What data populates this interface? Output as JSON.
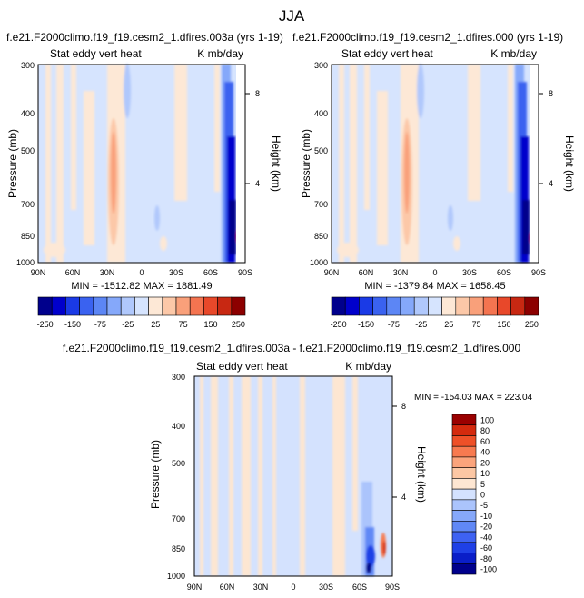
{
  "page_title": "JJA",
  "palette": {
    "full": [
      "#00008c",
      "#0000cc",
      "#1a3ae6",
      "#3a62f0",
      "#5c86f5",
      "#85a8fa",
      "#b0c8fc",
      "#d6e4fe",
      "#fde8d6",
      "#fcc8a8",
      "#f9a07a",
      "#f47450",
      "#e8482a",
      "#c82812",
      "#8c0000"
    ],
    "full_labels": [
      "-250",
      "-150",
      "-75",
      "-25",
      "25",
      "75",
      "150",
      "250"
    ],
    "diff": [
      "#00008c",
      "#0a1ec8",
      "#1f40e6",
      "#3e62f2",
      "#6088f6",
      "#86a8fa",
      "#abc4fc",
      "#d4e2fe",
      "#fde6d2",
      "#fcc7a4",
      "#fba47c",
      "#f77a50",
      "#ee5028",
      "#d42a0e",
      "#9a0000"
    ],
    "diff_labels": [
      "100",
      "80",
      "60",
      "40",
      "20",
      "10",
      "5",
      "0",
      "-5",
      "-10",
      "-20",
      "-40",
      "-60",
      "-80",
      "-100"
    ]
  },
  "chart_data": [
    {
      "type": "heatmap",
      "title": "f.e21.F2000climo.f19_f19.cesm2_1.dfires.003a (yrs 1-19)",
      "left_label": "Stat eddy vert heat",
      "right_label": "K mb/day",
      "ylabel": "Pressure (mb)",
      "y2label": "Height (km)",
      "x_ticks": [
        "90N",
        "60N",
        "30N",
        "0",
        "30S",
        "60S",
        "90S"
      ],
      "y_ticks": [
        "300",
        "400",
        "500",
        "700",
        "850",
        "1000"
      ],
      "y2_ticks": [
        "8",
        "4"
      ],
      "min_max": "MIN = -1512.82   MAX = 1881.49",
      "y_scale": "log"
    },
    {
      "type": "heatmap",
      "title": "f.e21.F2000climo.f19_f19.cesm2_1.dfires.000 (yrs 1-19)",
      "left_label": "Stat eddy vert heat",
      "right_label": "K mb/day",
      "ylabel": "Pressure (mb)",
      "y2label": "Height (km)",
      "x_ticks": [
        "90N",
        "60N",
        "30N",
        "0",
        "30S",
        "60S",
        "90S"
      ],
      "y_ticks": [
        "300",
        "400",
        "500",
        "700",
        "850",
        "1000"
      ],
      "y2_ticks": [
        "8",
        "4"
      ],
      "min_max": "MIN = -1379.84   MAX = 1658.45",
      "y_scale": "log"
    },
    {
      "type": "heatmap",
      "title": "f.e21.F2000climo.f19_f19.cesm2_1.dfires.003a - f.e21.F2000climo.f19_f19.cesm2_1.dfires.000",
      "left_label": "Stat eddy vert heat",
      "right_label": "K mb/day",
      "ylabel": "Pressure (mb)",
      "y2label": "Height (km)",
      "x_ticks": [
        "90N",
        "60N",
        "30N",
        "0",
        "30S",
        "60S",
        "90S"
      ],
      "y_ticks": [
        "300",
        "400",
        "500",
        "700",
        "850",
        "1000"
      ],
      "y2_ticks": [
        "8",
        "4"
      ],
      "min_max": "MIN = -154.03   MAX = 223.04",
      "y_scale": "log"
    }
  ]
}
